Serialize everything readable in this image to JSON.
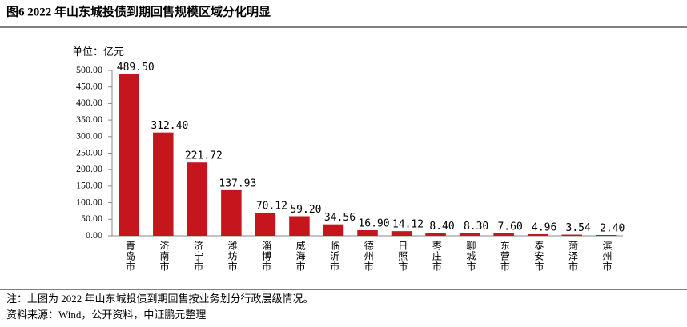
{
  "chart_data": {
    "type": "bar",
    "title": "图6  2022 年山东城投债到期回售规模区域分化明显",
    "unit_label": "单位：亿元",
    "categories": [
      "青岛市",
      "济南市",
      "济宁市",
      "潍坊市",
      "淄博市",
      "威海市",
      "临沂市",
      "德州市",
      "日照市",
      "枣庄市",
      "聊城市",
      "东营市",
      "泰安市",
      "菏泽市",
      "滨州市"
    ],
    "values": [
      489.5,
      312.4,
      221.72,
      137.93,
      70.12,
      59.2,
      34.56,
      16.9,
      14.12,
      8.4,
      8.3,
      7.6,
      4.96,
      3.54,
      2.4
    ],
    "value_labels": [
      "489.50",
      "312.40",
      "221.72",
      "137.93",
      "70.12",
      "59.20",
      "34.56",
      "16.90",
      "14.12",
      "8.40",
      "8.30",
      "7.60",
      "4.96",
      "3.54",
      "2.40"
    ],
    "color": "#c4161c",
    "ylim": [
      0,
      500
    ],
    "yticks": [
      {
        "value": 0,
        "label": "0.00"
      },
      {
        "value": 50,
        "label": "50.00"
      },
      {
        "value": 100,
        "label": "100.00"
      },
      {
        "value": 150,
        "label": "150.00"
      },
      {
        "value": 200,
        "label": "200.00"
      },
      {
        "value": 250,
        "label": "250.00"
      },
      {
        "value": 300,
        "label": "300.00"
      },
      {
        "value": 350,
        "label": "350.00"
      },
      {
        "value": 400,
        "label": "400.00"
      },
      {
        "value": 450,
        "label": "450.00"
      },
      {
        "value": 500,
        "label": "500.00"
      }
    ],
    "grid": false,
    "notes": [
      "注：上图为 2022 年山东城投债到期回售按业务划分行政层级情况。",
      "资料来源：Wind，公开资料，中证鹏元整理"
    ]
  }
}
